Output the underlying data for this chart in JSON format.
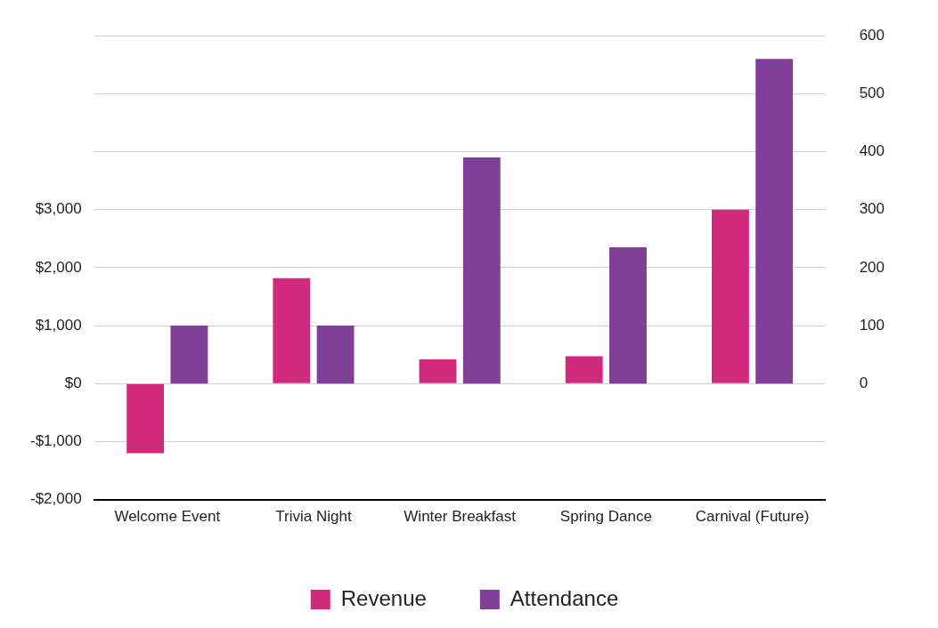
{
  "chart_data": {
    "type": "bar",
    "categories": [
      "Welcome Event",
      "Trivia Night",
      "Winter Breakfast",
      "Spring Dance",
      "Carnival (Future)"
    ],
    "series": [
      {
        "name": "Revenue",
        "color": "#d12a7c",
        "values": [
          -1200,
          1820,
          420,
          470,
          3000
        ]
      },
      {
        "name": "Attendance",
        "color": "#7f3f98",
        "values": [
          100,
          100,
          390,
          235,
          560
        ],
        "axis": "y2"
      }
    ],
    "ylim": [
      -2000,
      6000
    ],
    "yticks": [
      {
        "value": -2000,
        "label": "-$2,000"
      },
      {
        "value": -1000,
        "label": "-$1,000"
      },
      {
        "value": 0,
        "label": "$0"
      },
      {
        "value": 1000,
        "label": "$1,000"
      },
      {
        "value": 2000,
        "label": "$2,000"
      },
      {
        "value": 3000,
        "label": "$3,000"
      },
      {
        "value": 4000,
        "label": null
      },
      {
        "value": 5000,
        "label": null
      },
      {
        "value": 6000,
        "label": null
      }
    ],
    "y2lim": [
      -200,
      600
    ],
    "y2ticks": [
      0,
      100,
      200,
      300,
      400,
      500,
      600
    ],
    "grid": "y",
    "legend": "bottom"
  }
}
